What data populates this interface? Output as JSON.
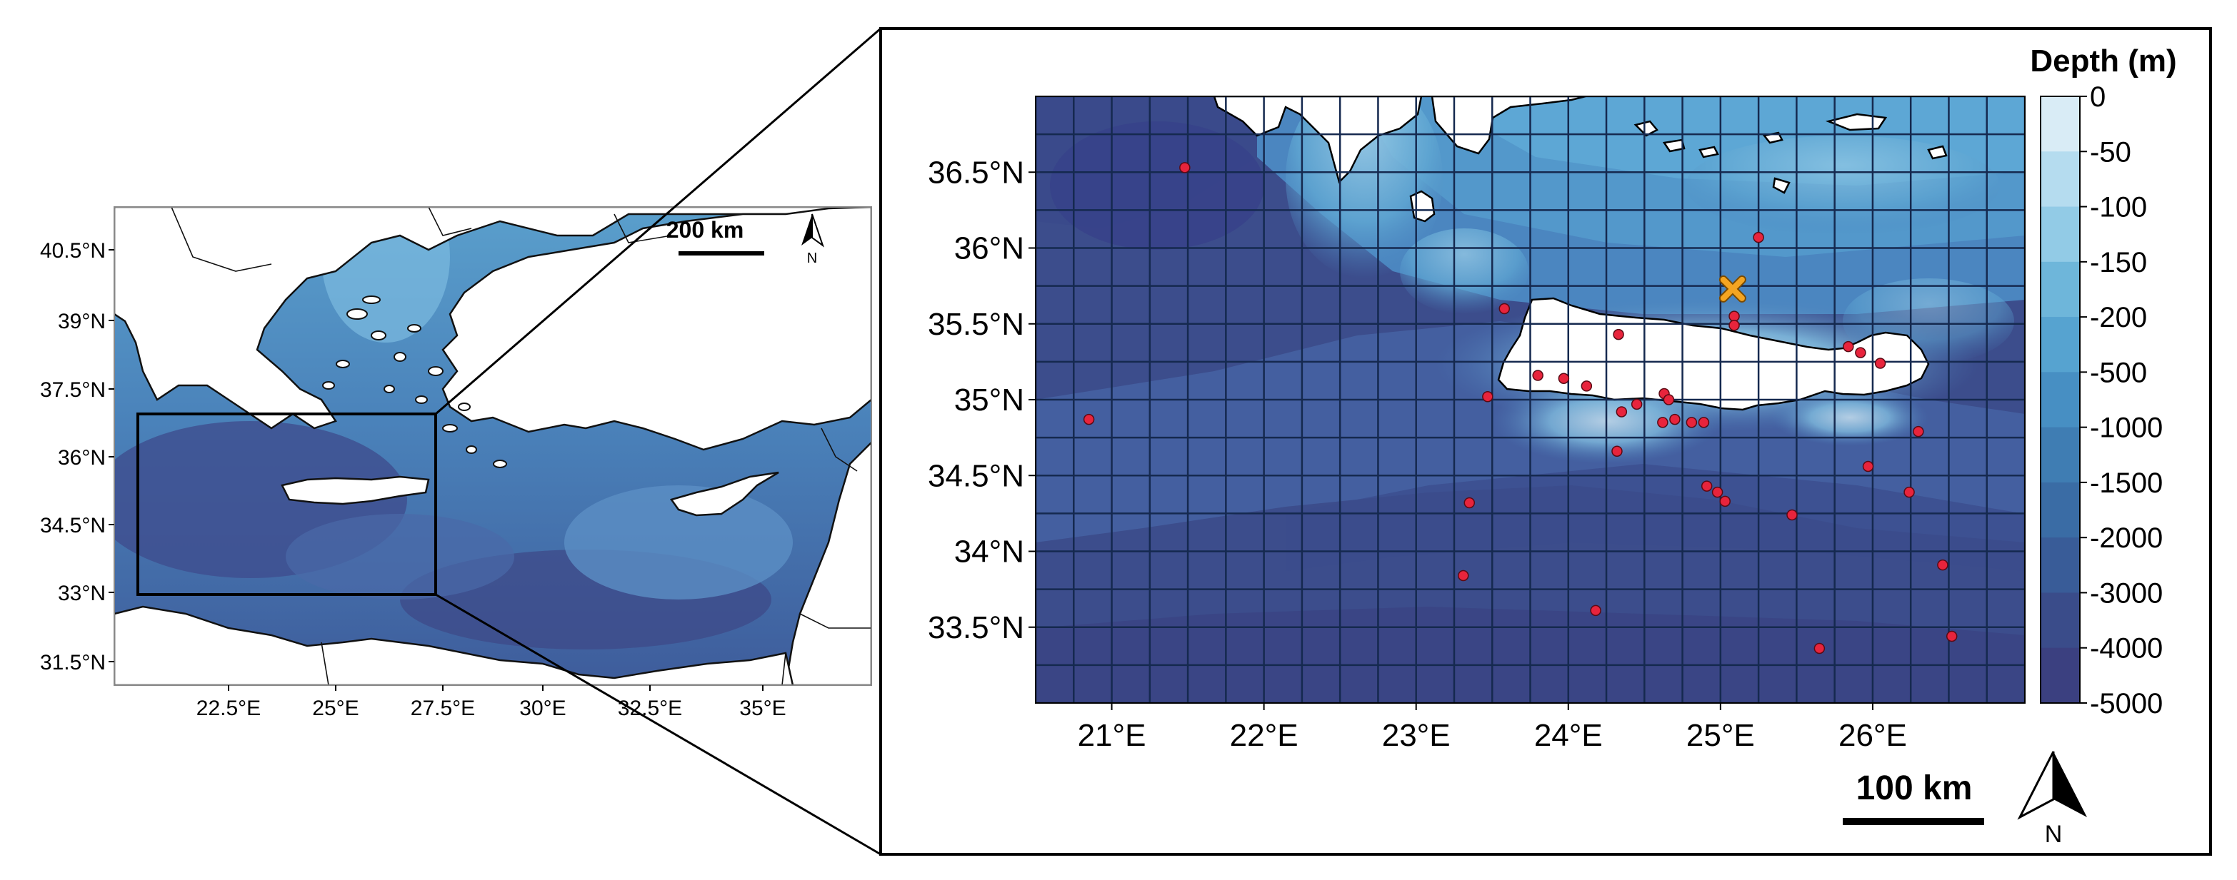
{
  "overview_map": {
    "lat_ticks": [
      "40.5°N",
      "39°N",
      "37.5°N",
      "36°N",
      "34.5°N",
      "33°N",
      "31.5°N"
    ],
    "lon_ticks": [
      "22.5°E",
      "25°E",
      "27.5°E",
      "30°E",
      "32.5°E",
      "35°E"
    ],
    "scale_bar_label": "200 km",
    "north_label": "N",
    "extent_box": {
      "lon": [
        20.5,
        27.0
      ],
      "lat": [
        33.0,
        37.0
      ]
    }
  },
  "detail_map": {
    "lat_ticks": [
      "36.5°N",
      "36°N",
      "35.5°N",
      "35°N",
      "34.5°N",
      "34°N",
      "33.5°N"
    ],
    "lon_ticks": [
      "21°E",
      "22°E",
      "23°E",
      "24°E",
      "25°E",
      "26°E"
    ],
    "extent": {
      "lon": [
        20.5,
        27.0
      ],
      "lat": [
        33.0,
        37.0
      ]
    },
    "grid_step_deg": 0.25,
    "scale_bar_label": "100 km",
    "north_label": "N",
    "colorbar": {
      "title": "Depth (m)",
      "labels": [
        "0",
        "-50",
        "-100",
        "-150",
        "-200",
        "-500",
        "-1000",
        "-1500",
        "-2000",
        "-3000",
        "-4000",
        "-5000"
      ],
      "colors": [
        "#f4f9fc",
        "#d9ecf6",
        "#b5dcef",
        "#92cbe6",
        "#6eb6da",
        "#56a3d0",
        "#478fc3",
        "#3f7db3",
        "#3a6ca5",
        "#395c98",
        "#3a4c8a",
        "#3b4080"
      ]
    },
    "sample_points": [
      {
        "lon": 20.85,
        "lat": 34.87
      },
      {
        "lon": 21.48,
        "lat": 36.53
      },
      {
        "lon": 23.58,
        "lat": 35.6
      },
      {
        "lon": 23.47,
        "lat": 35.02
      },
      {
        "lon": 23.8,
        "lat": 35.16
      },
      {
        "lon": 23.97,
        "lat": 35.14
      },
      {
        "lon": 24.12,
        "lat": 35.09
      },
      {
        "lon": 24.33,
        "lat": 35.43
      },
      {
        "lon": 24.35,
        "lat": 34.92
      },
      {
        "lon": 24.45,
        "lat": 34.97
      },
      {
        "lon": 24.63,
        "lat": 35.04
      },
      {
        "lon": 24.66,
        "lat": 35.0
      },
      {
        "lon": 24.62,
        "lat": 34.85
      },
      {
        "lon": 24.7,
        "lat": 34.87
      },
      {
        "lon": 24.81,
        "lat": 34.85
      },
      {
        "lon": 24.89,
        "lat": 34.85
      },
      {
        "lon": 24.32,
        "lat": 34.66
      },
      {
        "lon": 24.91,
        "lat": 34.43
      },
      {
        "lon": 24.98,
        "lat": 34.39
      },
      {
        "lon": 25.03,
        "lat": 34.33
      },
      {
        "lon": 25.09,
        "lat": 35.55
      },
      {
        "lon": 25.09,
        "lat": 35.49
      },
      {
        "lon": 25.25,
        "lat": 36.07
      },
      {
        "lon": 25.47,
        "lat": 34.24
      },
      {
        "lon": 25.84,
        "lat": 35.35
      },
      {
        "lon": 25.92,
        "lat": 35.31
      },
      {
        "lon": 26.05,
        "lat": 35.24
      },
      {
        "lon": 25.97,
        "lat": 34.56
      },
      {
        "lon": 26.24,
        "lat": 34.39
      },
      {
        "lon": 26.3,
        "lat": 34.79
      },
      {
        "lon": 26.46,
        "lat": 33.91
      },
      {
        "lon": 26.52,
        "lat": 33.44
      },
      {
        "lon": 25.65,
        "lat": 33.36
      },
      {
        "lon": 24.18,
        "lat": 33.61
      },
      {
        "lon": 23.31,
        "lat": 33.84
      },
      {
        "lon": 23.35,
        "lat": 34.32
      }
    ],
    "reference_point": {
      "lon": 25.08,
      "lat": 35.73,
      "color": "#f4a522"
    }
  },
  "colors": {
    "land": "#ffffff",
    "deep": "#3c4d8c",
    "grid": "#15294f",
    "point": "#e8243c"
  }
}
